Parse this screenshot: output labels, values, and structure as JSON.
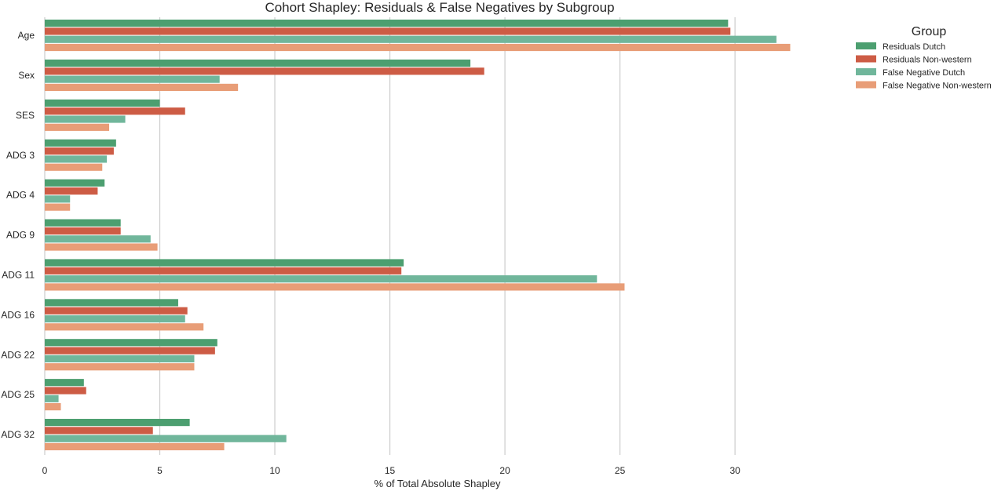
{
  "chart_data": {
    "type": "bar",
    "orientation": "horizontal",
    "title": "Cohort Shapley: Residuals & False Negatives by Subgroup",
    "xlabel": "% of Total Absolute Shapley",
    "ylabel": "",
    "xlim": [
      0,
      34.5
    ],
    "xticks": [
      0,
      5,
      10,
      15,
      20,
      25,
      30
    ],
    "grid": "vertical",
    "categories": [
      "Age",
      "Sex",
      "SES",
      "ADG 3",
      "ADG 4",
      "ADG 9",
      "ADG 11",
      "ADG 16",
      "ADG 22",
      "ADG 25",
      "ADG 32"
    ],
    "series": [
      {
        "name": "Residuals Dutch",
        "color": "#4c9f70",
        "values": [
          29.7,
          18.5,
          5.0,
          3.1,
          2.6,
          3.3,
          15.6,
          5.8,
          7.5,
          1.7,
          6.3
        ]
      },
      {
        "name": "Residuals Non-western",
        "color": "#cd5c45",
        "values": [
          29.8,
          19.1,
          6.1,
          3.0,
          2.3,
          3.3,
          15.5,
          6.2,
          7.4,
          1.8,
          4.7
        ]
      },
      {
        "name": "False Negative Dutch",
        "color": "#70b69b",
        "values": [
          31.8,
          7.6,
          3.5,
          2.7,
          1.1,
          4.6,
          24.0,
          6.1,
          6.5,
          0.6,
          10.5
        ]
      },
      {
        "name": "False Negative Non-western",
        "color": "#e89d77",
        "values": [
          32.4,
          8.4,
          2.8,
          2.5,
          1.1,
          4.9,
          25.2,
          6.9,
          6.5,
          0.7,
          7.8
        ]
      }
    ],
    "legend": {
      "title": "Group",
      "position": "right"
    }
  }
}
